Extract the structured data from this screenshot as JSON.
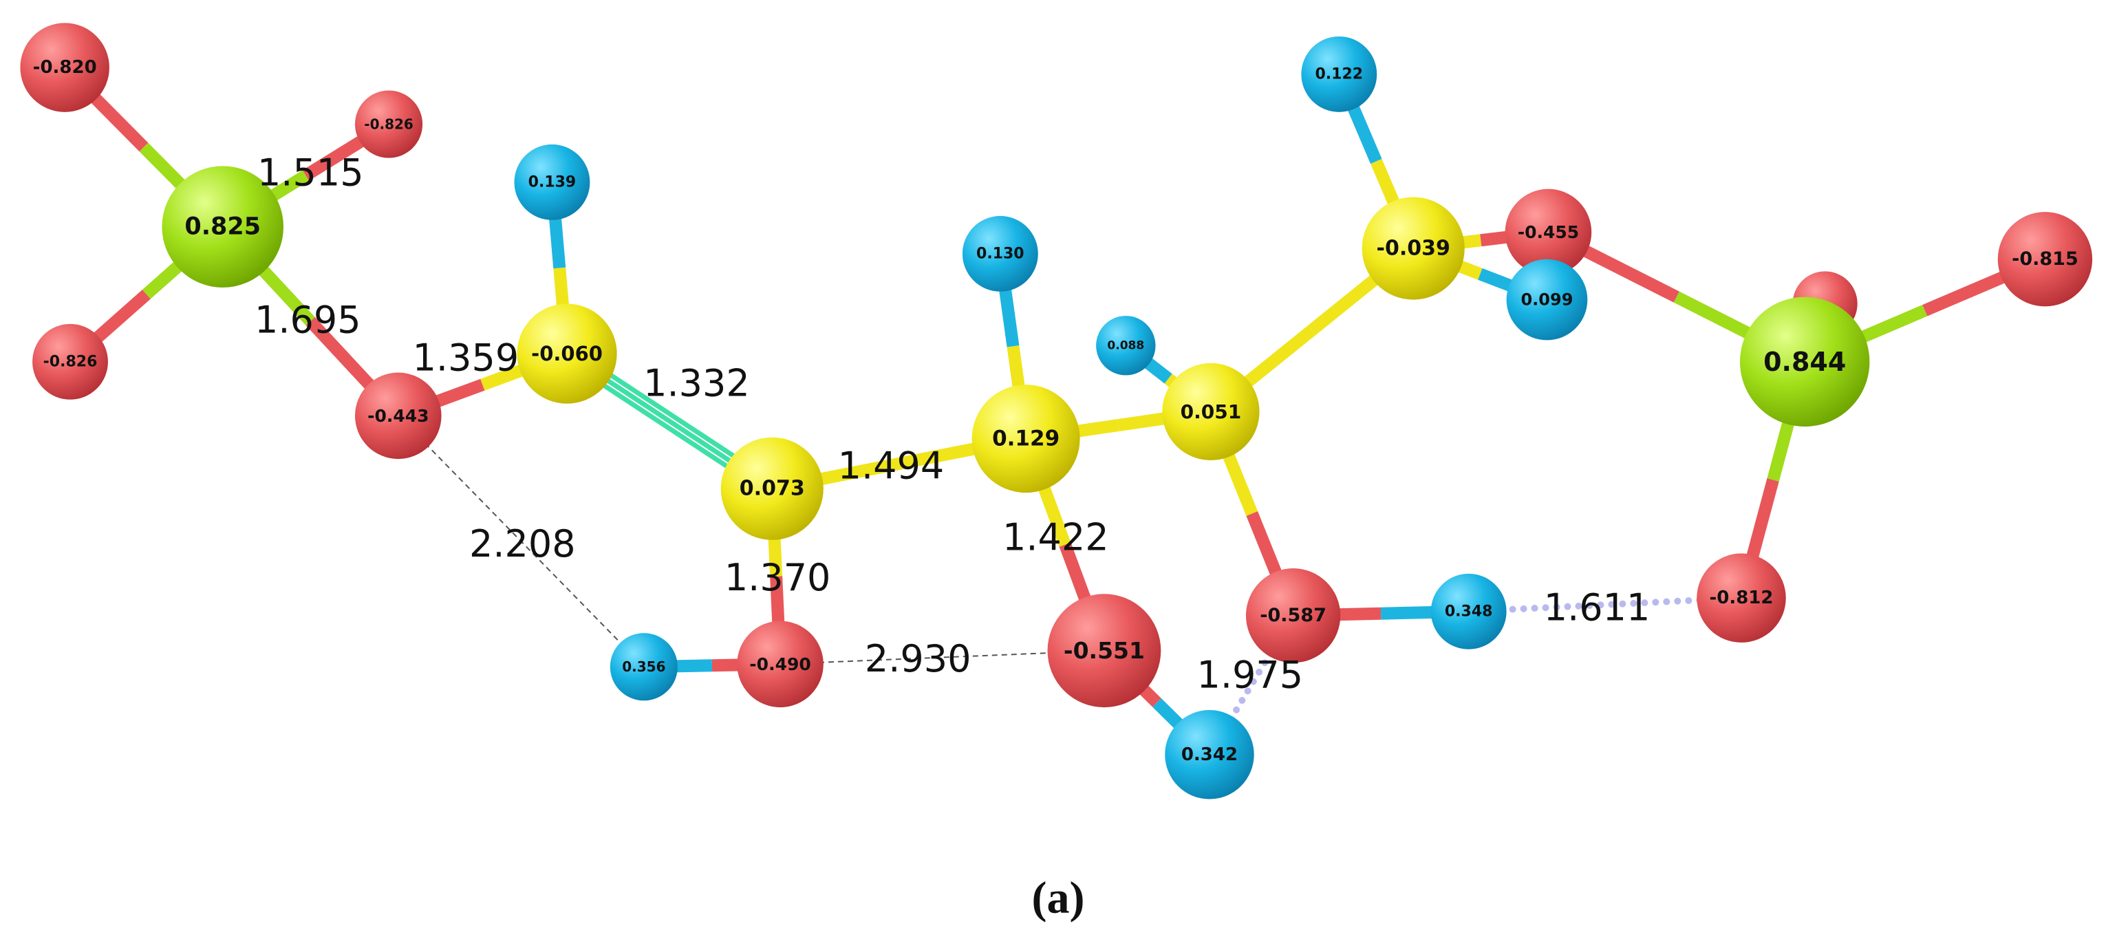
{
  "atoms": [
    "-0.820",
    "-0.826",
    "0.825",
    "-0.826",
    "0.139",
    "-0.443",
    "-0.060",
    "0.073",
    "0.130",
    "0.129",
    "0.088",
    "0.051",
    "0.122",
    "-0.039",
    "-0.455",
    "0.099",
    "-0.815",
    "0.844",
    "0.356",
    "-0.490",
    "-0.551",
    "-0.587",
    "0.348",
    "-0.812",
    "0.342"
  ],
  "bond_lengths": [
    "1.515",
    "1.695",
    "1.359",
    "1.332",
    "1.494",
    "1.422",
    "1.370",
    "2.208",
    "2.930",
    "1.975",
    "1.611"
  ],
  "caption": "(a)"
}
